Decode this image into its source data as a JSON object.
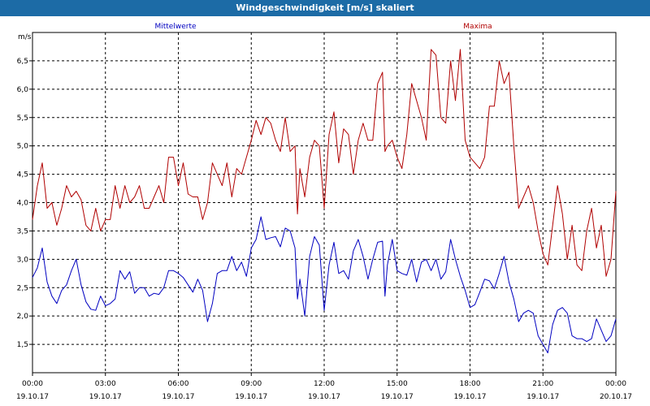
{
  "window": {
    "title": "Windgeschwindigkeit [m/s] skaliert"
  },
  "chart_data": {
    "type": "line",
    "title": "Windgeschwindigkeit [m/s] skaliert",
    "ylabel": "m/s",
    "xlabel": "",
    "ylim": [
      1.0,
      7.0
    ],
    "xlim_hours": [
      0,
      24
    ],
    "grid": true,
    "y_ticks": [
      "1,5",
      "2,0",
      "2,5",
      "3,0",
      "3,5",
      "4,0",
      "4,5",
      "5,0",
      "5,5",
      "6,0",
      "6,5"
    ],
    "y_tick_values": [
      1.5,
      2.0,
      2.5,
      3.0,
      3.5,
      4.0,
      4.5,
      5.0,
      5.5,
      6.0,
      6.5
    ],
    "x_ticks": [
      {
        "hour": 0,
        "time": "00:00",
        "date": "19.10.17"
      },
      {
        "hour": 3,
        "time": "03:00",
        "date": "19.10.17"
      },
      {
        "hour": 6,
        "time": "06:00",
        "date": "19.10.17"
      },
      {
        "hour": 9,
        "time": "09:00",
        "date": "19.10.17"
      },
      {
        "hour": 12,
        "time": "12:00",
        "date": "19.10.17"
      },
      {
        "hour": 15,
        "time": "15:00",
        "date": "19.10.17"
      },
      {
        "hour": 18,
        "time": "18:00",
        "date": "19.10.17"
      },
      {
        "hour": 21,
        "time": "21:00",
        "date": "19.10.17"
      },
      {
        "hour": 24,
        "time": "00:00",
        "date": "20.10.17"
      }
    ],
    "series": [
      {
        "name": "Mittelwerte",
        "color": "#0000c0",
        "points": [
          [
            0.0,
            2.68
          ],
          [
            0.2,
            2.85
          ],
          [
            0.4,
            3.2
          ],
          [
            0.6,
            2.6
          ],
          [
            0.8,
            2.35
          ],
          [
            1.0,
            2.22
          ],
          [
            1.2,
            2.45
          ],
          [
            1.4,
            2.55
          ],
          [
            1.6,
            2.8
          ],
          [
            1.8,
            3.0
          ],
          [
            2.0,
            2.55
          ],
          [
            2.2,
            2.25
          ],
          [
            2.4,
            2.12
          ],
          [
            2.6,
            2.1
          ],
          [
            2.8,
            2.35
          ],
          [
            3.0,
            2.18
          ],
          [
            3.2,
            2.22
          ],
          [
            3.4,
            2.3
          ],
          [
            3.6,
            2.8
          ],
          [
            3.8,
            2.65
          ],
          [
            4.0,
            2.78
          ],
          [
            4.2,
            2.4
          ],
          [
            4.4,
            2.5
          ],
          [
            4.6,
            2.5
          ],
          [
            4.8,
            2.35
          ],
          [
            5.0,
            2.4
          ],
          [
            5.2,
            2.38
          ],
          [
            5.4,
            2.5
          ],
          [
            5.6,
            2.8
          ],
          [
            5.8,
            2.8
          ],
          [
            6.0,
            2.75
          ],
          [
            6.2,
            2.68
          ],
          [
            6.4,
            2.55
          ],
          [
            6.6,
            2.42
          ],
          [
            6.8,
            2.65
          ],
          [
            7.0,
            2.45
          ],
          [
            7.2,
            1.9
          ],
          [
            7.4,
            2.22
          ],
          [
            7.6,
            2.75
          ],
          [
            7.8,
            2.8
          ],
          [
            8.0,
            2.8
          ],
          [
            8.2,
            3.05
          ],
          [
            8.4,
            2.8
          ],
          [
            8.6,
            2.95
          ],
          [
            8.8,
            2.7
          ],
          [
            9.0,
            3.2
          ],
          [
            9.2,
            3.35
          ],
          [
            9.4,
            3.75
          ],
          [
            9.6,
            3.35
          ],
          [
            9.8,
            3.38
          ],
          [
            10.0,
            3.4
          ],
          [
            10.2,
            3.22
          ],
          [
            10.4,
            3.55
          ],
          [
            10.6,
            3.5
          ],
          [
            10.8,
            3.2
          ],
          [
            10.9,
            2.3
          ],
          [
            11.0,
            2.65
          ],
          [
            11.2,
            2.0
          ],
          [
            11.4,
            3.05
          ],
          [
            11.6,
            3.4
          ],
          [
            11.8,
            3.25
          ],
          [
            12.0,
            2.1
          ],
          [
            12.2,
            2.9
          ],
          [
            12.4,
            3.3
          ],
          [
            12.6,
            2.75
          ],
          [
            12.8,
            2.8
          ],
          [
            13.0,
            2.65
          ],
          [
            13.2,
            3.15
          ],
          [
            13.4,
            3.35
          ],
          [
            13.6,
            3.05
          ],
          [
            13.8,
            2.65
          ],
          [
            14.0,
            3.0
          ],
          [
            14.2,
            3.3
          ],
          [
            14.4,
            3.32
          ],
          [
            14.5,
            2.35
          ],
          [
            14.6,
            2.9
          ],
          [
            14.8,
            3.35
          ],
          [
            15.0,
            2.8
          ],
          [
            15.2,
            2.75
          ],
          [
            15.4,
            2.72
          ],
          [
            15.6,
            3.0
          ],
          [
            15.8,
            2.6
          ],
          [
            16.0,
            2.95
          ],
          [
            16.2,
            3.0
          ],
          [
            16.4,
            2.8
          ],
          [
            16.6,
            3.0
          ],
          [
            16.8,
            2.65
          ],
          [
            17.0,
            2.78
          ],
          [
            17.2,
            3.35
          ],
          [
            17.4,
            3.0
          ],
          [
            17.6,
            2.7
          ],
          [
            17.8,
            2.45
          ],
          [
            18.0,
            2.15
          ],
          [
            18.2,
            2.2
          ],
          [
            18.4,
            2.42
          ],
          [
            18.6,
            2.65
          ],
          [
            18.8,
            2.62
          ],
          [
            19.0,
            2.48
          ],
          [
            19.2,
            2.75
          ],
          [
            19.4,
            3.05
          ],
          [
            19.6,
            2.6
          ],
          [
            19.8,
            2.3
          ],
          [
            20.0,
            1.9
          ],
          [
            20.2,
            2.05
          ],
          [
            20.4,
            2.1
          ],
          [
            20.6,
            2.05
          ],
          [
            20.8,
            1.65
          ],
          [
            21.0,
            1.5
          ],
          [
            21.2,
            1.35
          ],
          [
            21.4,
            1.85
          ],
          [
            21.6,
            2.1
          ],
          [
            21.8,
            2.15
          ],
          [
            22.0,
            2.05
          ],
          [
            22.2,
            1.65
          ],
          [
            22.4,
            1.6
          ],
          [
            22.6,
            1.6
          ],
          [
            22.8,
            1.55
          ],
          [
            23.0,
            1.6
          ],
          [
            23.2,
            1.95
          ],
          [
            23.4,
            1.75
          ],
          [
            23.6,
            1.55
          ],
          [
            23.8,
            1.65
          ],
          [
            24.0,
            1.95
          ]
        ]
      },
      {
        "name": "Maxima",
        "color": "#b00000",
        "points": [
          [
            0.0,
            3.7
          ],
          [
            0.2,
            4.3
          ],
          [
            0.4,
            4.7
          ],
          [
            0.6,
            3.9
          ],
          [
            0.8,
            4.0
          ],
          [
            1.0,
            3.6
          ],
          [
            1.2,
            3.9
          ],
          [
            1.4,
            4.3
          ],
          [
            1.6,
            4.1
          ],
          [
            1.8,
            4.2
          ],
          [
            2.0,
            4.05
          ],
          [
            2.2,
            3.6
          ],
          [
            2.4,
            3.5
          ],
          [
            2.6,
            3.9
          ],
          [
            2.8,
            3.5
          ],
          [
            3.0,
            3.7
          ],
          [
            3.2,
            3.7
          ],
          [
            3.4,
            4.3
          ],
          [
            3.6,
            3.9
          ],
          [
            3.8,
            4.3
          ],
          [
            4.0,
            4.0
          ],
          [
            4.2,
            4.1
          ],
          [
            4.4,
            4.3
          ],
          [
            4.6,
            3.9
          ],
          [
            4.8,
            3.9
          ],
          [
            5.0,
            4.1
          ],
          [
            5.2,
            4.3
          ],
          [
            5.4,
            4.0
          ],
          [
            5.6,
            4.8
          ],
          [
            5.8,
            4.8
          ],
          [
            6.0,
            4.3
          ],
          [
            6.2,
            4.7
          ],
          [
            6.4,
            4.15
          ],
          [
            6.6,
            4.1
          ],
          [
            6.8,
            4.1
          ],
          [
            7.0,
            3.7
          ],
          [
            7.2,
            4.0
          ],
          [
            7.4,
            4.7
          ],
          [
            7.6,
            4.5
          ],
          [
            7.8,
            4.3
          ],
          [
            8.0,
            4.7
          ],
          [
            8.2,
            4.1
          ],
          [
            8.4,
            4.6
          ],
          [
            8.6,
            4.5
          ],
          [
            8.8,
            4.8
          ],
          [
            9.0,
            5.1
          ],
          [
            9.2,
            5.45
          ],
          [
            9.4,
            5.2
          ],
          [
            9.6,
            5.5
          ],
          [
            9.8,
            5.4
          ],
          [
            10.0,
            5.1
          ],
          [
            10.2,
            4.9
          ],
          [
            10.4,
            5.5
          ],
          [
            10.6,
            4.9
          ],
          [
            10.8,
            5.0
          ],
          [
            10.9,
            3.8
          ],
          [
            11.0,
            4.6
          ],
          [
            11.2,
            4.1
          ],
          [
            11.4,
            4.8
          ],
          [
            11.6,
            5.1
          ],
          [
            11.8,
            5.0
          ],
          [
            12.0,
            3.9
          ],
          [
            12.2,
            5.2
          ],
          [
            12.4,
            5.6
          ],
          [
            12.6,
            4.7
          ],
          [
            12.8,
            5.3
          ],
          [
            13.0,
            5.2
          ],
          [
            13.2,
            4.5
          ],
          [
            13.4,
            5.1
          ],
          [
            13.6,
            5.4
          ],
          [
            13.8,
            5.1
          ],
          [
            14.0,
            5.1
          ],
          [
            14.2,
            6.1
          ],
          [
            14.4,
            6.3
          ],
          [
            14.5,
            4.9
          ],
          [
            14.6,
            5.0
          ],
          [
            14.8,
            5.1
          ],
          [
            15.0,
            4.8
          ],
          [
            15.2,
            4.6
          ],
          [
            15.4,
            5.2
          ],
          [
            15.6,
            6.1
          ],
          [
            15.8,
            5.8
          ],
          [
            16.0,
            5.5
          ],
          [
            16.2,
            5.1
          ],
          [
            16.4,
            6.7
          ],
          [
            16.6,
            6.6
          ],
          [
            16.8,
            5.5
          ],
          [
            17.0,
            5.4
          ],
          [
            17.2,
            6.5
          ],
          [
            17.4,
            5.8
          ],
          [
            17.6,
            6.7
          ],
          [
            17.8,
            5.1
          ],
          [
            18.0,
            4.8
          ],
          [
            18.2,
            4.7
          ],
          [
            18.4,
            4.6
          ],
          [
            18.6,
            4.8
          ],
          [
            18.8,
            5.7
          ],
          [
            19.0,
            5.7
          ],
          [
            19.2,
            6.5
          ],
          [
            19.4,
            6.1
          ],
          [
            19.6,
            6.3
          ],
          [
            19.8,
            5.0
          ],
          [
            20.0,
            3.9
          ],
          [
            20.2,
            4.1
          ],
          [
            20.4,
            4.3
          ],
          [
            20.6,
            4.0
          ],
          [
            20.8,
            3.5
          ],
          [
            21.0,
            3.1
          ],
          [
            21.2,
            2.9
          ],
          [
            21.4,
            3.6
          ],
          [
            21.6,
            4.3
          ],
          [
            21.8,
            3.8
          ],
          [
            22.0,
            3.0
          ],
          [
            22.2,
            3.6
          ],
          [
            22.4,
            2.9
          ],
          [
            22.6,
            2.8
          ],
          [
            22.8,
            3.5
          ],
          [
            23.0,
            3.9
          ],
          [
            23.2,
            3.2
          ],
          [
            23.4,
            3.6
          ],
          [
            23.6,
            2.7
          ],
          [
            23.8,
            3.0
          ],
          [
            24.0,
            4.2
          ]
        ]
      }
    ]
  }
}
